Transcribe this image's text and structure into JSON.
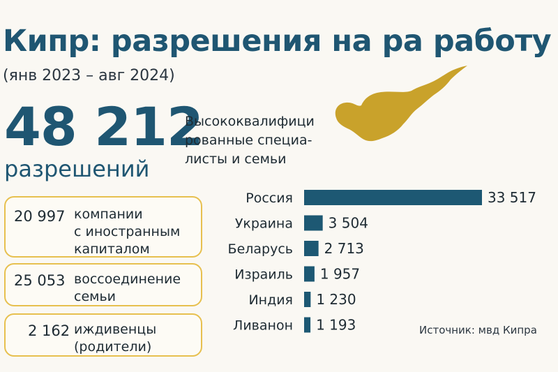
{
  "header": {
    "title": "Кипр: разрешения на ра работу",
    "subtitle": "(янв 2023 – авг 2024)"
  },
  "summary": {
    "total": "48 212",
    "total_label": "разрешений",
    "note_lines": [
      "Высококвалифици",
      "рованные специа-",
      "листы и семьи"
    ]
  },
  "categories": [
    {
      "value": "20 997",
      "lines": [
        "компании",
        "с иностранным",
        "капиталом"
      ]
    },
    {
      "value": "25 053",
      "lines": [
        "воссоединение",
        "семьи"
      ]
    },
    {
      "value": "2 162",
      "lines": [
        "иждивенцы",
        "(родители)"
      ]
    }
  ],
  "colors": {
    "bar": "#1d5873",
    "title": "#1f5672",
    "map": "#c9a22b",
    "card_border": "#e7c04f"
  },
  "chart_data": {
    "type": "bar",
    "orientation": "horizontal",
    "categories": [
      "Россия",
      "Украина",
      "Беларусь",
      "Израиль",
      "Индия",
      "Ливанон"
    ],
    "values": [
      33517,
      3504,
      2713,
      1957,
      1230,
      1193
    ],
    "value_labels": [
      "33 517",
      "3 504",
      "2 713",
      "1 957",
      "1 230",
      "1 193"
    ]
  },
  "source": "Источник: мвд Кипра"
}
